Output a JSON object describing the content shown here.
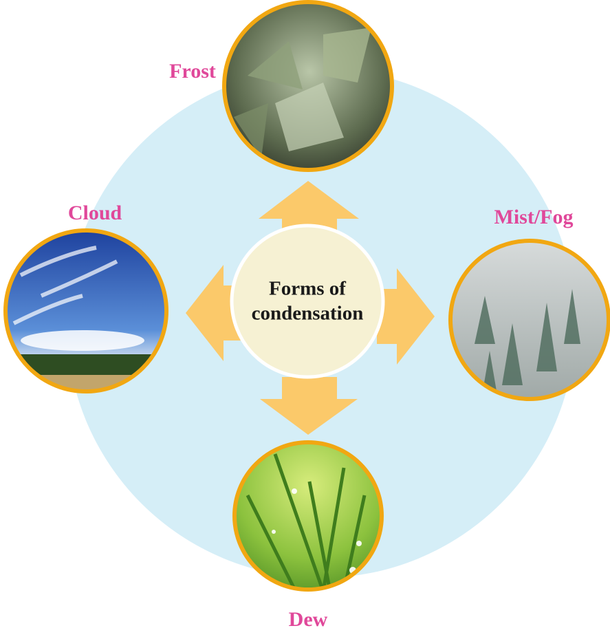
{
  "center": {
    "lines": [
      "Forms of",
      "condensation"
    ]
  },
  "nodes": [
    {
      "label": "Frost"
    },
    {
      "label": "Cloud"
    },
    {
      "label": "Mist/Fog"
    },
    {
      "label": "Dew"
    }
  ]
}
